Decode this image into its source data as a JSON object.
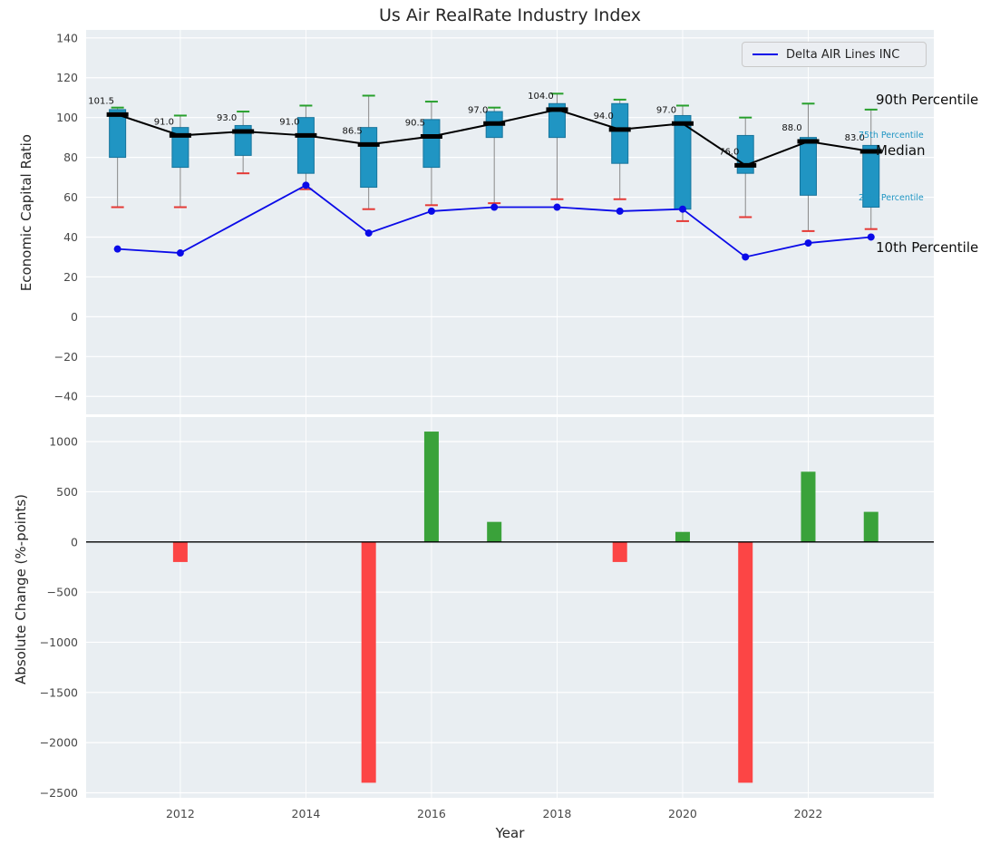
{
  "title": "Us Air RealRate Industry Index",
  "axes": {
    "ylabel_top": "Economic Capital Ratio",
    "ylabel_bottom": "Absolute Change (%-points)",
    "xlabel": "Year"
  },
  "legend": {
    "label": "Delta AIR Lines INC"
  },
  "annotations": {
    "p90": "90th Percentile",
    "p75": "75th Percentile",
    "median": "Median",
    "p25": "25th Percentile",
    "p10": "10th Percentile"
  },
  "colors": {
    "box_fill": "#2095c3",
    "box_edge": "#17749c",
    "whisker": "#8a8a8a",
    "median": "#000000",
    "delta_line": "#0a0ae8",
    "p90_cap": "#27a02c",
    "p10_cap": "#e53935",
    "bar_pos": "#3aa23a",
    "bar_neg": "#fc4545",
    "plot_bg": "#e9eef2",
    "grid": "#ffffff",
    "annotation_teal": "#2095c3"
  },
  "chart_data": [
    {
      "type": "boxplot",
      "title": "Us Air RealRate Industry Index",
      "ylabel": "Economic Capital Ratio",
      "xlim": [
        2010.5,
        2024
      ],
      "ylim": [
        -49,
        144
      ],
      "yticks": [
        140,
        120,
        100,
        80,
        60,
        40,
        20,
        0,
        -20,
        -40
      ],
      "years": [
        2011,
        2012,
        2013,
        2014,
        2015,
        2016,
        2017,
        2018,
        2019,
        2020,
        2021,
        2022,
        2023
      ],
      "median": [
        101.5,
        91,
        93,
        91,
        86.5,
        90.5,
        97,
        104,
        94,
        97,
        76,
        88,
        83
      ],
      "median_labels": [
        "101.5",
        "91.0",
        "93.0",
        "91.0",
        "86.5",
        "90.5",
        "97.0",
        "104.0",
        "94.0",
        "97.0",
        "76.0",
        "88.0",
        "83.0"
      ],
      "q1": [
        80,
        75,
        81,
        72,
        65,
        75,
        90,
        90,
        77,
        54,
        72,
        61,
        55
      ],
      "q3": [
        104,
        95,
        96,
        100,
        95,
        99,
        103,
        107,
        107,
        101,
        91,
        90,
        86
      ],
      "p10": [
        55,
        55,
        72,
        64,
        54,
        56,
        57,
        59,
        59,
        48,
        50,
        43,
        44
      ],
      "p90": [
        105,
        101,
        103,
        106,
        111,
        108,
        105,
        112,
        109,
        106,
        100,
        107,
        104
      ],
      "series": [
        {
          "name": "Delta AIR Lines INC",
          "type": "line",
          "values": [
            34,
            32,
            null,
            66,
            42,
            53,
            55,
            55,
            53,
            54,
            30,
            37,
            40
          ]
        }
      ],
      "legend_position": "upper right",
      "grid": true
    },
    {
      "type": "bar",
      "ylabel": "Absolute Change (%-points)",
      "xlabel": "Year",
      "xlim": [
        2010.5,
        2024
      ],
      "ylim": [
        -2550,
        1245
      ],
      "yticks": [
        1000,
        500,
        0,
        -500,
        -1000,
        -1500,
        -2000,
        -2500
      ],
      "xticks": [
        2012,
        2014,
        2016,
        2018,
        2020,
        2022
      ],
      "years": [
        2011,
        2012,
        2013,
        2014,
        2015,
        2016,
        2017,
        2018,
        2019,
        2020,
        2021,
        2022,
        2023
      ],
      "values": [
        0,
        -200,
        0,
        0,
        -2400,
        1100,
        200,
        0,
        -200,
        100,
        -2400,
        700,
        300
      ],
      "grid": true
    }
  ]
}
